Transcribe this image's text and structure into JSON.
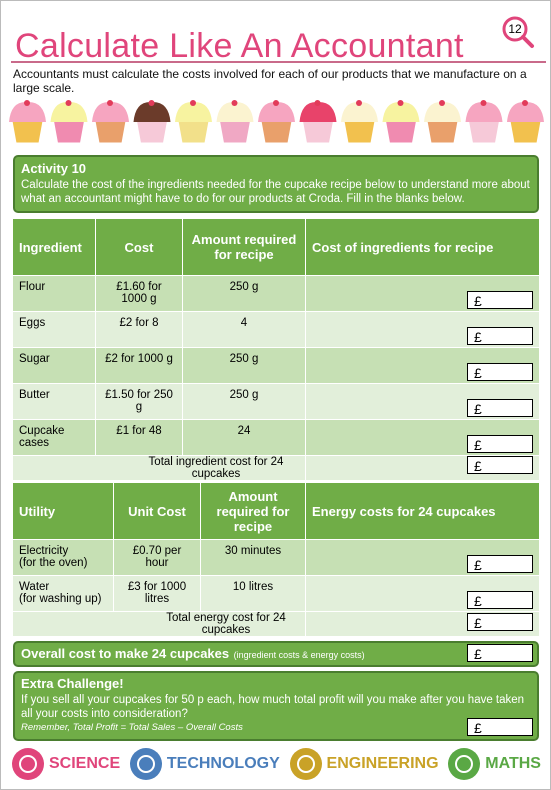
{
  "page_number": "12",
  "title": "Calculate Like An Accountant",
  "intro": "Accountants must calculate the costs involved for each of our products that we manufacture on a large scale.",
  "activity": {
    "title": "Activity 10",
    "text": "Calculate the cost of the ingredients needed for the cupcake recipe below to understand more about what an accountant might have to do for our products at Croda. Fill in the blanks below."
  },
  "currency": "£",
  "ingredients_table": {
    "headers": [
      "Ingredient",
      "Cost",
      "Amount required for recipe",
      "Cost of ingredients for recipe"
    ],
    "rows": [
      [
        "Flour",
        "£1.60 for 1000 g",
        "250 g"
      ],
      [
        "Eggs",
        "£2 for 8",
        "4"
      ],
      [
        "Sugar",
        "£2 for 1000 g",
        "250 g"
      ],
      [
        "Butter",
        "£1.50 for 250 g",
        "250 g"
      ],
      [
        "Cupcake cases",
        "£1 for 48",
        "24"
      ]
    ],
    "total_label": "Total ingredient cost for 24 cupcakes"
  },
  "utilities_table": {
    "headers": [
      "Utility",
      "Unit Cost",
      "Amount required for recipe",
      "Energy costs for 24 cupcakes"
    ],
    "rows": [
      [
        "Electricity\n(for the oven)",
        "£0.70 per hour",
        "30 minutes"
      ],
      [
        "Water\n(for washing up)",
        "£3 for 1000 litres",
        "10 litres"
      ]
    ],
    "total_label": "Total energy cost for 24 cupcakes"
  },
  "overall": {
    "label": "Overall cost to make 24 cupcakes",
    "note": "(ingredient costs & energy costs)"
  },
  "challenge": {
    "title": "Extra Challenge!",
    "text": "If you sell all your cupcakes for 50 p each, how much total profit will you make after you have taken all your costs into consideration?",
    "note": "Remember, Total Profit = Total Sales – Overall Costs"
  },
  "footer": [
    "SCIENCE",
    "TECHNOLOGY",
    "ENGINEERING",
    "MATHS"
  ]
}
